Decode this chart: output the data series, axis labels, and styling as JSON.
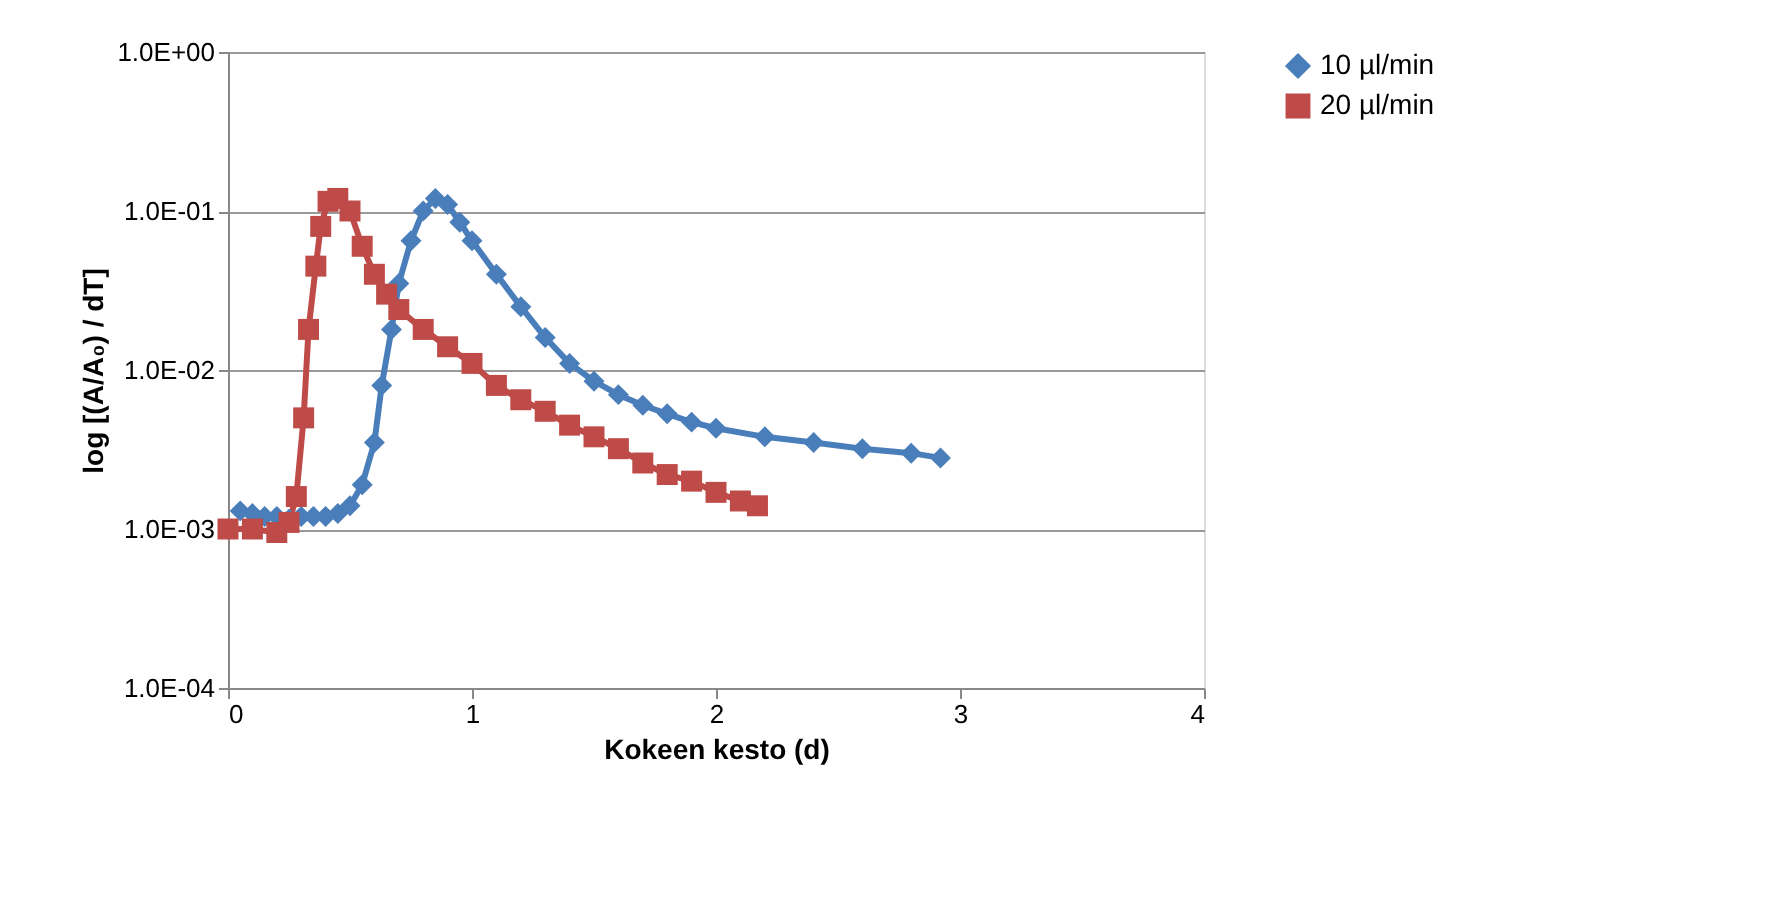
{
  "chart_data": {
    "type": "line",
    "xlabel": "Kokeen kesto (d)",
    "ylabel": "log [(A/A₀) / dT]",
    "log": "y",
    "grid": "y",
    "legend": "right",
    "line_style": "solid",
    "xlim": [
      0,
      4
    ],
    "xticks": [
      0,
      1,
      2,
      3,
      4
    ],
    "ylim": [
      0.0001,
      1
    ],
    "yticks": [
      {
        "value": 0.0001,
        "label": "1.0E-04"
      },
      {
        "value": 0.001,
        "label": "1.0E-03"
      },
      {
        "value": 0.01,
        "label": "1.0E-02"
      },
      {
        "value": 0.1,
        "label": "1.0E-01"
      },
      {
        "value": 1,
        "label": "1.0E+00"
      }
    ],
    "series": [
      {
        "name": "10 µl/min",
        "color": "#4a7ebb",
        "marker": "diamond",
        "x": [
          0.05,
          0.1,
          0.15,
          0.2,
          0.25,
          0.3,
          0.35,
          0.4,
          0.45,
          0.5,
          0.55,
          0.6,
          0.63,
          0.67,
          0.7,
          0.75,
          0.8,
          0.85,
          0.9,
          0.95,
          1.0,
          1.1,
          1.2,
          1.3,
          1.4,
          1.5,
          1.6,
          1.7,
          1.8,
          1.9,
          2.0,
          2.2,
          2.4,
          2.6,
          2.8,
          2.92
        ],
        "values": [
          0.0013,
          0.00125,
          0.0012,
          0.0012,
          0.00115,
          0.0012,
          0.0012,
          0.0012,
          0.00125,
          0.0014,
          0.0019,
          0.0035,
          0.008,
          0.018,
          0.035,
          0.065,
          0.1,
          0.12,
          0.11,
          0.085,
          0.065,
          0.04,
          0.025,
          0.016,
          0.011,
          0.0085,
          0.007,
          0.006,
          0.0053,
          0.0047,
          0.0043,
          0.0038,
          0.0035,
          0.0032,
          0.003,
          0.0028
        ]
      },
      {
        "name": "20 µl/min",
        "color": "#be4b48",
        "marker": "square",
        "x": [
          0,
          0.1,
          0.2,
          0.25,
          0.28,
          0.31,
          0.33,
          0.36,
          0.38,
          0.41,
          0.45,
          0.5,
          0.55,
          0.6,
          0.65,
          0.7,
          0.8,
          0.9,
          1.0,
          1.1,
          1.2,
          1.3,
          1.4,
          1.5,
          1.6,
          1.7,
          1.8,
          1.9,
          2.0,
          2.1,
          2.17
        ],
        "values": [
          0.001,
          0.001,
          0.00095,
          0.0011,
          0.0016,
          0.005,
          0.018,
          0.045,
          0.08,
          0.115,
          0.12,
          0.1,
          0.06,
          0.04,
          0.03,
          0.024,
          0.018,
          0.014,
          0.011,
          0.008,
          0.0065,
          0.0055,
          0.0045,
          0.0038,
          0.0032,
          0.0026,
          0.0022,
          0.002,
          0.0017,
          0.0015,
          0.0014
        ]
      }
    ]
  }
}
